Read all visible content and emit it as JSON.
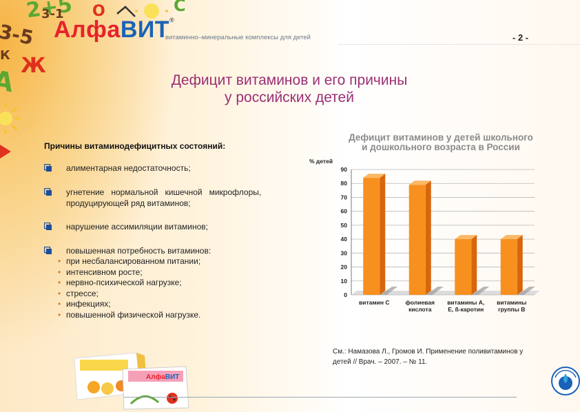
{
  "header": {
    "logo_alfa": "Алфа",
    "logo_vit": "ВИТ",
    "logo_reg": "®",
    "tagline": "витаминно–минеральные комплексы для детей",
    "page_number": "- 2 -"
  },
  "decorations": {
    "d1": "2+5",
    "d2": "3-1",
    "d3": "3-5",
    "d4": "О",
    "d5": "С",
    "d6": "А",
    "d7": "Ж",
    "d8": "К"
  },
  "slide": {
    "title_line1": "Дефицит витаминов и его причины",
    "title_line2": "у российских детей",
    "causes_heading": "Причины витаминодефицитных состояний:",
    "causes": [
      "алиментарная недостаточность;",
      "угнетение   нормальной   кишечной   микрофлоры,",
      "продуцирующей ряд витаминов;",
      "нарушение ассимиляции витаминов;",
      "повышенная потребность витаминов:"
    ],
    "sub_items": [
      "при несбалансированном питании;",
      "интенсивном росте;",
      "нервно-психической нагрузке;",
      "стрессе;",
      "инфекциях;",
      "повышенной физической нагрузке."
    ],
    "reference_line1": "См.: Намазова Л., Громов И. Применение поливитаминов у",
    "reference_line2": "детей // Врач. – 2007. – № 11."
  },
  "chart_data": {
    "type": "bar",
    "title_line1": "Дефицит витаминов у детей школьного",
    "title_line2": "и дошкольного возраста в России",
    "ylabel": "% детей",
    "ylim": [
      0,
      90
    ],
    "yticks": [
      "0",
      "10",
      "20",
      "30",
      "40",
      "50",
      "60",
      "70",
      "80",
      "90"
    ],
    "categories": [
      [
        "витамин С"
      ],
      [
        "фолиевая",
        "кислота"
      ],
      [
        "витамины А,",
        "Е, ß-каротин"
      ],
      [
        "витамины",
        "группы В"
      ]
    ],
    "values": [
      84,
      79,
      40,
      40
    ],
    "colors": {
      "bar_front": "#f7901e",
      "bar_side": "#d8660c",
      "bar_top": "#fbb866",
      "grid": "#b8b8b8"
    }
  },
  "colors": {
    "title": "#9a2f74",
    "logo_red": "#e8222b",
    "logo_blue": "#1a62b8",
    "bullet_icon": "#1c4e9a"
  }
}
